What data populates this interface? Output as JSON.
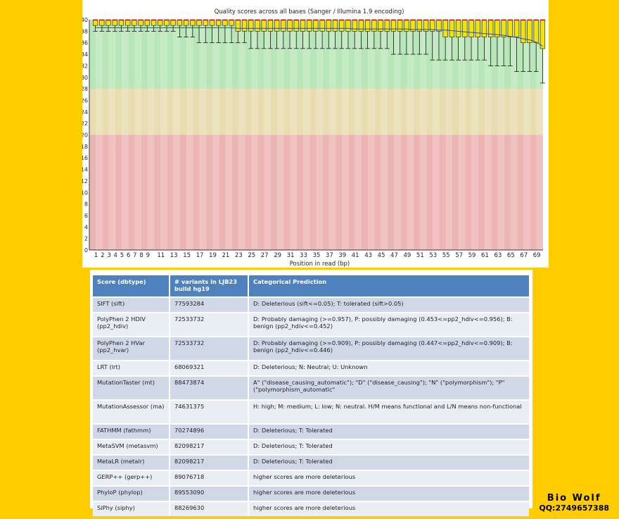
{
  "chart_data": {
    "type": "boxplot",
    "title": "Quality scores across all bases (Sanger / Illumina 1.9 encoding)",
    "xlabel": "Position in read (bp)",
    "ylabel": "",
    "ylim": [
      0,
      40
    ],
    "y_ticks": [
      0,
      2,
      4,
      6,
      8,
      10,
      12,
      14,
      16,
      18,
      20,
      22,
      24,
      26,
      28,
      30,
      32,
      34,
      36,
      38,
      40
    ],
    "x_tick_labels": [
      "1",
      "2",
      "3",
      "4",
      "5",
      "6",
      "7",
      "8",
      "9",
      "11",
      "13",
      "15",
      "17",
      "19",
      "21",
      "23",
      "25",
      "27",
      "29",
      "31",
      "33",
      "35",
      "37",
      "39",
      "41",
      "43",
      "45",
      "47",
      "49",
      "51",
      "53",
      "55",
      "57",
      "59",
      "61",
      "63",
      "65",
      "67",
      "69"
    ],
    "quality_bands": [
      {
        "name": "good",
        "from": 28,
        "to": 40,
        "color": "#B8E6B8"
      },
      {
        "name": "reasonable",
        "from": 20,
        "to": 28,
        "color": "#E8DCB0"
      },
      {
        "name": "poor",
        "from": 0,
        "to": 20,
        "color": "#EDB4B4"
      }
    ],
    "positions": [
      1,
      2,
      3,
      4,
      5,
      6,
      7,
      8,
      9,
      10,
      11,
      12,
      13,
      14,
      15,
      16,
      17,
      18,
      19,
      20,
      21,
      22,
      23,
      24,
      25,
      26,
      27,
      28,
      29,
      30,
      31,
      32,
      33,
      34,
      35,
      36,
      37,
      38,
      39,
      40,
      41,
      42,
      43,
      44,
      45,
      46,
      47,
      48,
      49,
      50,
      51,
      52,
      53,
      54,
      55,
      56,
      57,
      58,
      59,
      60,
      61,
      62,
      63,
      64,
      65,
      66,
      67,
      68,
      69,
      70
    ],
    "q1": [
      39,
      39,
      39,
      39,
      39,
      39,
      39,
      39,
      39,
      39,
      39,
      39,
      39,
      39,
      39,
      39,
      39,
      39,
      39,
      39,
      39,
      39,
      38,
      38,
      38,
      38,
      38,
      38,
      38,
      38,
      38,
      38,
      38,
      38,
      38,
      38,
      38,
      38,
      38,
      38,
      38,
      38,
      38,
      38,
      38,
      38,
      38,
      38,
      38,
      38,
      38,
      38,
      38,
      38,
      37,
      37,
      37,
      37,
      37,
      37,
      37,
      37,
      37,
      37,
      37,
      37,
      36,
      36,
      36,
      35
    ],
    "median": [
      40,
      40,
      40,
      40,
      40,
      40,
      40,
      40,
      40,
      40,
      40,
      40,
      40,
      40,
      40,
      40,
      40,
      40,
      40,
      40,
      40,
      40,
      40,
      40,
      40,
      40,
      40,
      40,
      40,
      40,
      40,
      40,
      40,
      40,
      40,
      40,
      40,
      40,
      40,
      40,
      40,
      40,
      40,
      40,
      40,
      40,
      40,
      40,
      40,
      40,
      40,
      40,
      40,
      40,
      40,
      40,
      40,
      40,
      40,
      40,
      40,
      40,
      40,
      40,
      40,
      40,
      40,
      40,
      40,
      40
    ],
    "q3": [
      40,
      40,
      40,
      40,
      40,
      40,
      40,
      40,
      40,
      40,
      40,
      40,
      40,
      40,
      40,
      40,
      40,
      40,
      40,
      40,
      40,
      40,
      40,
      40,
      40,
      40,
      40,
      40,
      40,
      40,
      40,
      40,
      40,
      40,
      40,
      40,
      40,
      40,
      40,
      40,
      40,
      40,
      40,
      40,
      40,
      40,
      40,
      40,
      40,
      40,
      40,
      40,
      40,
      40,
      40,
      40,
      40,
      40,
      40,
      40,
      40,
      40,
      40,
      40,
      40,
      40,
      40,
      40,
      40,
      40
    ],
    "p10": [
      38,
      38,
      38,
      38,
      38,
      38,
      38,
      38,
      38,
      38,
      38,
      38,
      38,
      37,
      37,
      37,
      36,
      36,
      36,
      36,
      36,
      36,
      36,
      36,
      35,
      35,
      35,
      35,
      35,
      35,
      35,
      35,
      35,
      35,
      35,
      35,
      35,
      35,
      35,
      35,
      35,
      35,
      35,
      35,
      35,
      35,
      34,
      34,
      34,
      34,
      34,
      34,
      33,
      33,
      33,
      33,
      33,
      33,
      33,
      33,
      33,
      32,
      32,
      32,
      32,
      31,
      31,
      31,
      31,
      29
    ],
    "p90": [
      40,
      40,
      40,
      40,
      40,
      40,
      40,
      40,
      40,
      40,
      40,
      40,
      40,
      40,
      40,
      40,
      40,
      40,
      40,
      40,
      40,
      40,
      40,
      40,
      40,
      40,
      40,
      40,
      40,
      40,
      40,
      40,
      40,
      40,
      40,
      40,
      40,
      40,
      40,
      40,
      40,
      40,
      40,
      40,
      40,
      40,
      40,
      40,
      40,
      40,
      40,
      40,
      40,
      40,
      40,
      40,
      40,
      40,
      40,
      40,
      40,
      40,
      40,
      40,
      40,
      40,
      40,
      40,
      40,
      40
    ],
    "mean": [
      38.6,
      38.6,
      38.6,
      38.6,
      38.6,
      38.6,
      38.6,
      38.6,
      38.6,
      38.6,
      38.6,
      38.6,
      38.6,
      38.6,
      38.6,
      38.6,
      38.6,
      38.6,
      38.6,
      38.6,
      38.6,
      38.6,
      38.5,
      38.5,
      38.5,
      38.5,
      38.5,
      38.5,
      38.5,
      38.5,
      38.5,
      38.5,
      38.5,
      38.5,
      38.5,
      38.5,
      38.5,
      38.5,
      38.5,
      38.5,
      38.4,
      38.4,
      38.4,
      38.4,
      38.4,
      38.4,
      38.4,
      38.4,
      38.4,
      38.3,
      38.3,
      38.3,
      38.3,
      38.2,
      38.2,
      38.1,
      38.0,
      37.9,
      37.8,
      37.7,
      37.6,
      37.5,
      37.4,
      37.3,
      37.1,
      36.9,
      36.7,
      36.5,
      36.1,
      35.4
    ],
    "box_color": "#F5E20A",
    "box_border": "#3A3A00",
    "mean_color": "#2E4B9E"
  },
  "table": {
    "headers": [
      "Score (dbtype)",
      "# variants in LJB23 build hg19",
      "Categorical Prediction"
    ],
    "rows": [
      [
        "SIFT (sift)",
        "77593284",
        "D: Deleterious (sift<=0.05); T: tolerated (sift>0.05)"
      ],
      [
        "PolyPhen 2 HDIV (pp2_hdiv)",
        "72533732",
        "D: Probably damaging (>=0.957), P: possibly damaging (0.453<=pp2_hdiv<=0.956); B: benign (pp2_hdiv<=0.452)"
      ],
      [
        "PolyPhen 2 HVar (pp2_hvar)",
        "72533732",
        "D: Probably damaging (>=0.909), P: possibly damaging (0.447<=pp2_hdiv<=0.909); B: benign (pp2_hdiv<=0.446)"
      ],
      [
        "LRT (lrt)",
        "68069321",
        "D: Deleterious; N: Neutral; U: Unknown"
      ],
      [
        "MutationTaster (mt)",
        "88473874",
        "A\" (\"disease_causing_automatic\"); \"D\" (\"disease_causing\"); \"N\" (\"polymorphism\"); \"P\" (\"polymorphism_automatic\""
      ],
      [
        "MutationAssessor (ma)",
        "74631375",
        "H: high; M: medium; L: low; N: neutral. H/M means functional and L/N means non-functional"
      ],
      [
        "FATHMM (fathmm)",
        "70274896",
        "D: Deleterious; T: Tolerated"
      ],
      [
        "MetaSVM (metasvm)",
        "82098217",
        "D: Deleterious; T: Tolerated"
      ],
      [
        "MetaLR (metalr)",
        "82098217",
        "D: Deleterious; T: Tolerated"
      ],
      [
        "GERP++ (gerp++)",
        "89076718",
        "higher scores are more deleterious"
      ],
      [
        "PhyloP (phylop)",
        "89553090",
        "higher scores are more deleterious"
      ],
      [
        "SiPhy (siphy)",
        "88269630",
        "higher scores are more deleterious"
      ]
    ]
  },
  "watermark": {
    "name": "Bio  Wolf",
    "qq": "QQ:2749657388"
  }
}
